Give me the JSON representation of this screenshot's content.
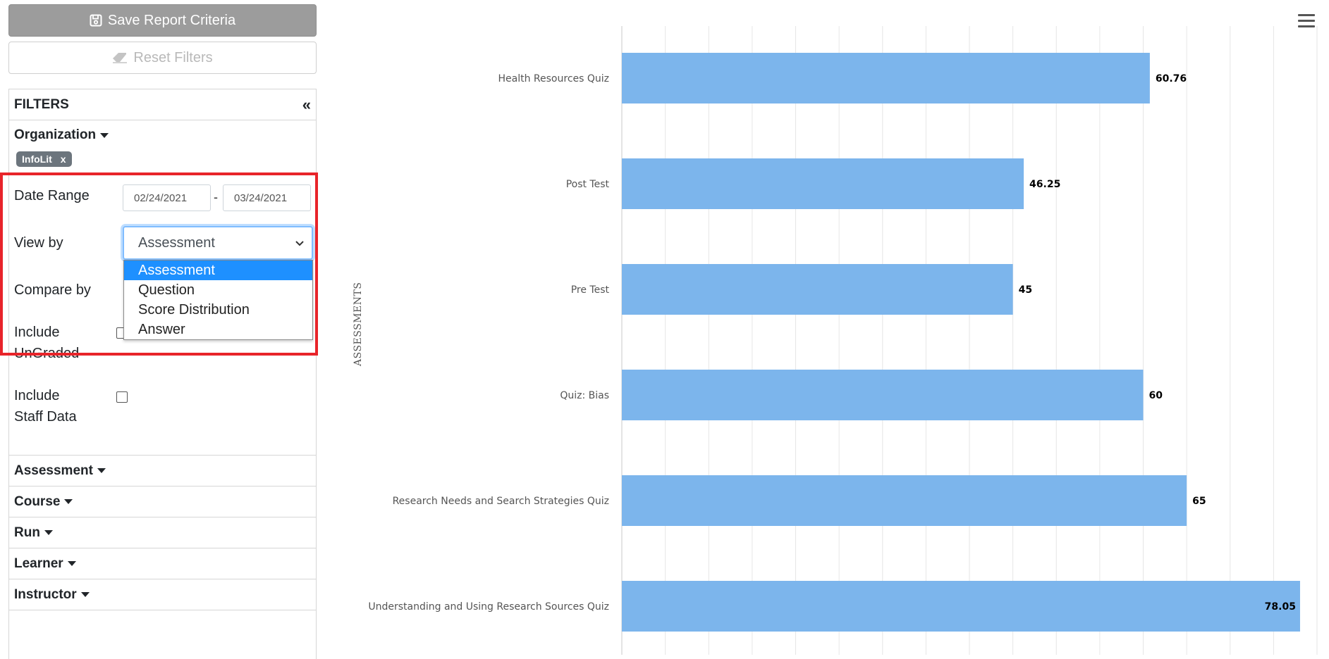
{
  "sidebar": {
    "save_label": "Save Report Criteria",
    "reset_label": "Reset Filters",
    "filters_title": "FILTERS",
    "collapse_symbol": "«",
    "organization_label": "Organization",
    "org_chip": {
      "label": "InfoLit",
      "remove": "x"
    },
    "date_range_label": "Date Range",
    "date_from": "02/24/2021",
    "date_to": "03/24/2021",
    "date_sep": "-",
    "view_by_label": "View by",
    "view_by_value": "Assessment",
    "view_by_options": [
      "Assessment",
      "Question",
      "Score Distribution",
      "Answer"
    ],
    "compare_by_label": "Compare by",
    "include_ungraded_label_1": "Include",
    "include_ungraded_label_2": "UnGraded",
    "include_staff_label_1": "Include",
    "include_staff_label_2": "Staff Data",
    "sections": [
      "Assessment",
      "Course",
      "Run",
      "Learner",
      "Instructor"
    ]
  },
  "chart": {
    "y_axis_title": "ASSESSMENTS"
  },
  "chart_data": {
    "type": "bar",
    "orientation": "horizontal",
    "categories": [
      "Health Resources Quiz",
      "Post Test",
      "Pre Test",
      "Quiz: Bias",
      "Research Needs and Search Strategies Quiz",
      "Understanding and Using Research Sources Quiz"
    ],
    "values": [
      60.76,
      46.25,
      45,
      60,
      65,
      78.05
    ],
    "data_labels": [
      "60.76",
      "46.25",
      "45",
      "60",
      "65",
      "78.05"
    ],
    "ylabel": "ASSESSMENTS",
    "xlim": [
      0,
      80
    ],
    "bar_color": "#7cb5ec",
    "grid": true
  }
}
